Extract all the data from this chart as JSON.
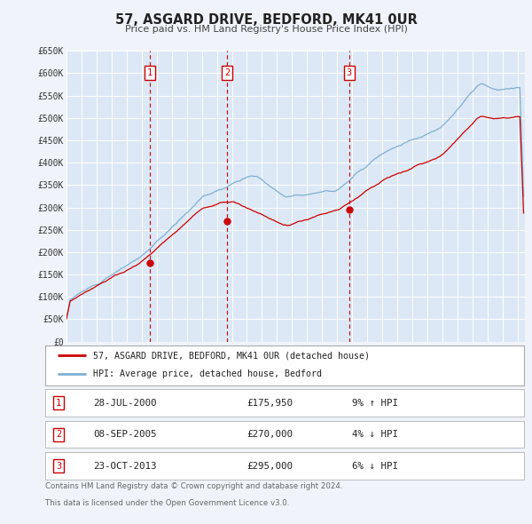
{
  "title": "57, ASGARD DRIVE, BEDFORD, MK41 0UR",
  "subtitle": "Price paid vs. HM Land Registry's House Price Index (HPI)",
  "bg_color": "#f0f4fa",
  "plot_bg_color": "#dce8f5",
  "grid_color": "#ffffff",
  "ylabel_ticks": [
    "£0",
    "£50K",
    "£100K",
    "£150K",
    "£200K",
    "£250K",
    "£300K",
    "£350K",
    "£400K",
    "£450K",
    "£500K",
    "£550K",
    "£600K",
    "£650K"
  ],
  "ytick_values": [
    0,
    50000,
    100000,
    150000,
    200000,
    250000,
    300000,
    350000,
    400000,
    450000,
    500000,
    550000,
    600000,
    650000
  ],
  "xlim_start": 1995.0,
  "xlim_end": 2025.5,
  "ylim_min": 0,
  "ylim_max": 650000,
  "sale_color": "#cc0000",
  "hpi_color": "#7fafd4",
  "legend_sale_label": "57, ASGARD DRIVE, BEDFORD, MK41 0UR (detached house)",
  "legend_hpi_label": "HPI: Average price, detached house, Bedford",
  "sale_years": [
    2000.538,
    2005.688,
    2013.804
  ],
  "sale_prices": [
    175950,
    270000,
    295000
  ],
  "annotations": [
    {
      "num": "1",
      "date": "28-JUL-2000",
      "price": "£175,950",
      "pct": "9% ↑ HPI"
    },
    {
      "num": "2",
      "date": "08-SEP-2005",
      "price": "£270,000",
      "pct": "4% ↓ HPI"
    },
    {
      "num": "3",
      "date": "23-OCT-2013",
      "price": "£295,000",
      "pct": "6% ↓ HPI"
    }
  ],
  "footer_line1": "Contains HM Land Registry data © Crown copyright and database right 2024.",
  "footer_line2": "This data is licensed under the Open Government Licence v3.0."
}
